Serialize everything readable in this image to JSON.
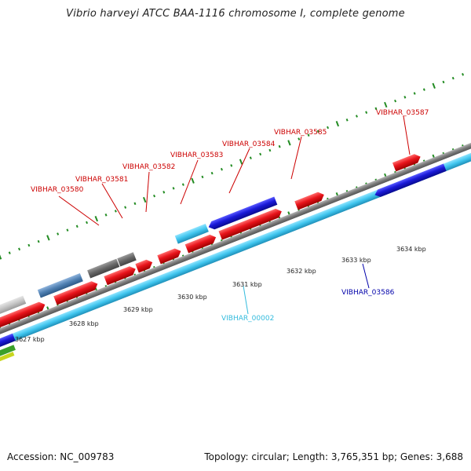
{
  "title": "Vibrio harveyi ATCC BAA-1116 chromosome I, complete genome",
  "accession": "Accession: NC_009783",
  "topology": "Topology: circular; Length: 3,765,351 bp; Genes: 3,688",
  "colors": {
    "red_gene": "#e8141b",
    "blue_gene": "#1a1ad8",
    "cyan_gene": "#3fc5ee",
    "steel_gene": "#4f80b2",
    "grey_gene": "#666666",
    "light_grey_gene": "#c4c4c4",
    "green_tick": "#238c23",
    "red_label": "#cc0000",
    "blue_label": "#0000aa",
    "cyan_label": "#33bbdd"
  },
  "scale_ticks": [
    "3627 kbp",
    "3628 kbp",
    "3629 kbp",
    "3630 kbp",
    "3631 kbp",
    "3632 kbp",
    "3633 kbp",
    "3634 kbp"
  ],
  "gene_labels": [
    {
      "text": "VIBHAR_03580",
      "color": "red"
    },
    {
      "text": "VIBHAR_03581",
      "color": "red"
    },
    {
      "text": "VIBHAR_03582",
      "color": "red"
    },
    {
      "text": "VIBHAR_03583",
      "color": "red"
    },
    {
      "text": "VIBHAR_03584",
      "color": "red"
    },
    {
      "text": "VIBHAR_03585",
      "color": "red"
    },
    {
      "text": "VIBHAR_03587",
      "color": "red"
    },
    {
      "text": "VIBHAR_03586",
      "color": "blue"
    },
    {
      "text": "VIBHAR_00002",
      "color": "cyan"
    }
  ]
}
